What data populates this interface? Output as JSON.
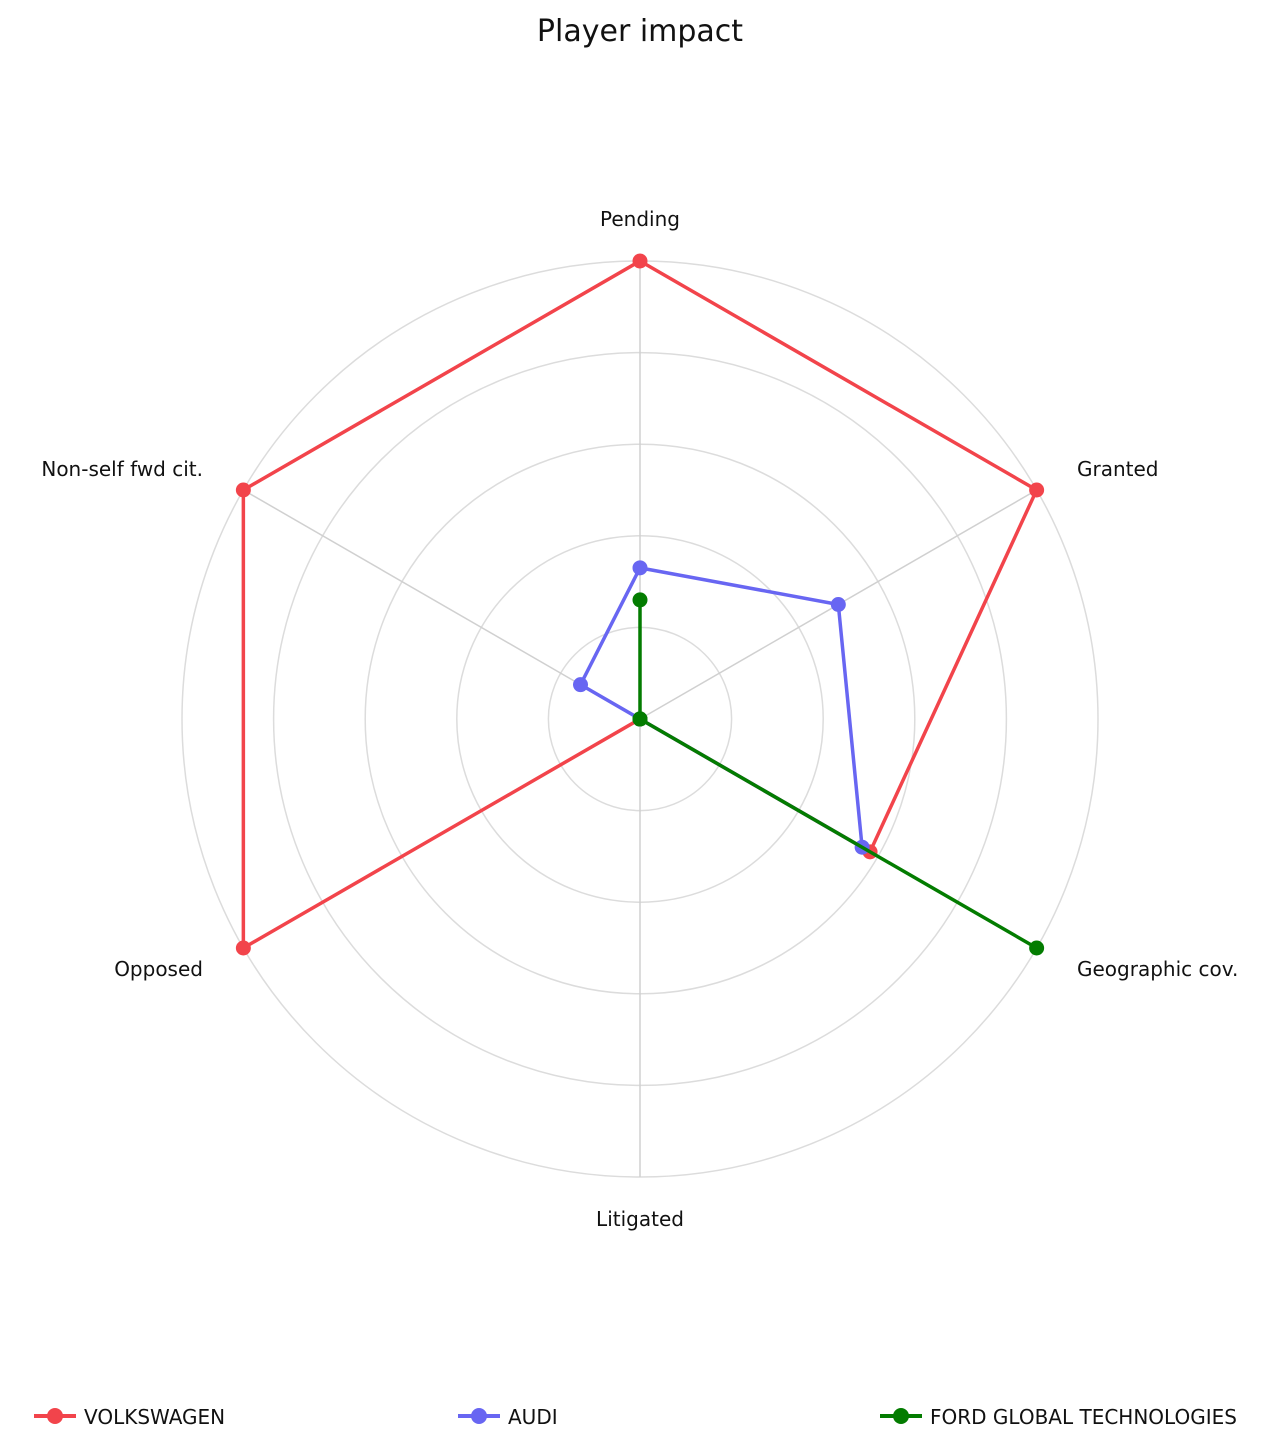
{
  "chart_data": {
    "type": "radar",
    "title": "Player impact",
    "axes": [
      "Pending",
      "Granted",
      "Geographic cov.",
      "Litigated",
      "Opposed",
      "Non-self fwd cit."
    ],
    "rmax": 1,
    "rings": 5,
    "grid": true,
    "legend_position": "bottom",
    "series": [
      {
        "name": "VOLKSWAGEN",
        "color": "#f2444b",
        "values": [
          1.0,
          1.0,
          0.58,
          0.0,
          1.0,
          1.0
        ]
      },
      {
        "name": "AUDI",
        "color": "#6866f2",
        "values": [
          0.33,
          0.5,
          0.56,
          0.0,
          0.0,
          0.15
        ]
      },
      {
        "name": "FORD GLOBAL TECHNOLOGIES",
        "color": "#037c00",
        "values": [
          0.26,
          0.0,
          1.0,
          0.0,
          0.0,
          0.0
        ]
      }
    ]
  }
}
